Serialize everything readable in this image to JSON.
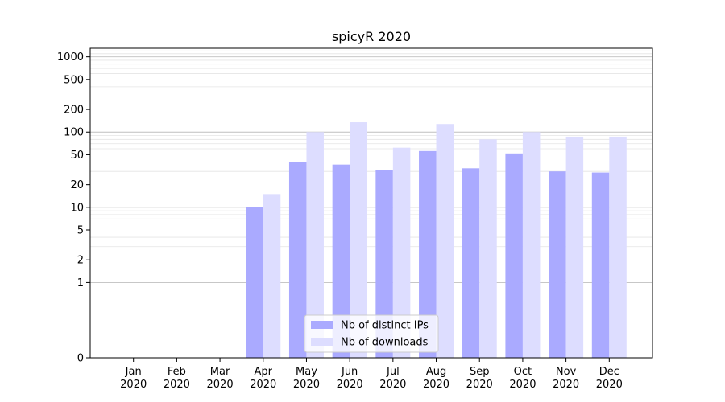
{
  "chart_data": {
    "type": "bar",
    "title": "spicyR 2020",
    "xlabel": "",
    "ylabel": "",
    "yscale": "symlog",
    "ylim": [
      0,
      1300
    ],
    "yticks": [
      0,
      1,
      2,
      5,
      10,
      20,
      50,
      100,
      200,
      500,
      1000
    ],
    "grid": true,
    "legend_position": "bottom-center",
    "categories": [
      {
        "month": "Jan",
        "year": "2020"
      },
      {
        "month": "Feb",
        "year": "2020"
      },
      {
        "month": "Mar",
        "year": "2020"
      },
      {
        "month": "Apr",
        "year": "2020"
      },
      {
        "month": "May",
        "year": "2020"
      },
      {
        "month": "Jun",
        "year": "2020"
      },
      {
        "month": "Jul",
        "year": "2020"
      },
      {
        "month": "Aug",
        "year": "2020"
      },
      {
        "month": "Sep",
        "year": "2020"
      },
      {
        "month": "Oct",
        "year": "2020"
      },
      {
        "month": "Nov",
        "year": "2020"
      },
      {
        "month": "Dec",
        "year": "2020"
      }
    ],
    "series": [
      {
        "name": "Nb of distinct IPs",
        "color": "#aaaaff",
        "values": [
          0,
          0,
          0,
          10,
          40,
          37,
          31,
          56,
          33,
          52,
          30,
          29
        ]
      },
      {
        "name": "Nb of downloads",
        "color": "#ddddff",
        "values": [
          0,
          0,
          0,
          15,
          100,
          135,
          62,
          128,
          80,
          100,
          87,
          87
        ]
      }
    ]
  }
}
